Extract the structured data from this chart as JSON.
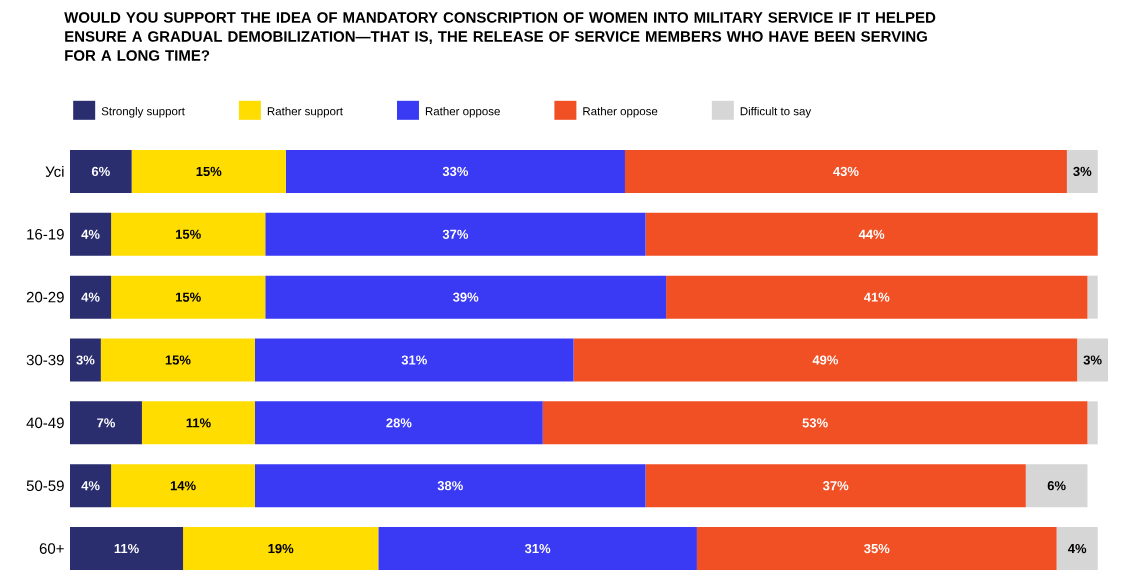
{
  "chart_data": {
    "type": "bar",
    "orientation": "horizontal",
    "stacked": true,
    "title": "WOULD YOU SUPPORT THE IDEA OF MANDATORY CONSCRIPTION OF WOMEN INTO MILITARY SERVICE IF IT HELPED ENSURE A GRADUAL DEMOBILIZATION—THAT IS, THE RELEASE OF SERVICE MEMBERS WHO HAVE BEEN SERVING FOR A LONG TIME?",
    "categories": [
      "Усі",
      "16-19",
      "20-29",
      "30-39",
      "40-49",
      "50-59",
      "60+"
    ],
    "xlim": [
      0,
      101
    ],
    "legend": "top left",
    "tick_labels": "y",
    "series": [
      {
        "name": "Strongly support",
        "color": "#2a2d6e",
        "values": [
          6,
          4,
          4,
          3,
          7,
          4,
          11
        ],
        "value_labels": [
          "6%",
          "4%",
          "4%",
          "3%",
          "7%",
          "4%",
          "11%"
        ]
      },
      {
        "name": "Rather support",
        "color": "#ffdd00",
        "values": [
          15,
          15,
          15,
          15,
          11,
          14,
          19
        ],
        "value_labels": [
          "15%",
          "15%",
          "15%",
          "15%",
          "11%",
          "14%",
          "19%"
        ]
      },
      {
        "name": "Rather oppose",
        "color": "#3a3af5",
        "values": [
          33,
          37,
          39,
          31,
          28,
          38,
          31
        ],
        "value_labels": [
          "33%",
          "37%",
          "39%",
          "31%",
          "28%",
          "38%",
          "31%"
        ]
      },
      {
        "name": "Rather oppose",
        "color": "#f15025",
        "values": [
          43,
          44,
          41,
          49,
          53,
          37,
          35
        ],
        "value_labels": [
          "43%",
          "44%",
          "41%",
          "49%",
          "53%",
          "37%",
          "35%"
        ]
      },
      {
        "name": "Difficult to say",
        "color": "#d6d6d6",
        "values": [
          3,
          0,
          1,
          3,
          1,
          6,
          4
        ],
        "value_labels": [
          "3%",
          null,
          null,
          "3%",
          null,
          "6%",
          "4%"
        ]
      }
    ]
  }
}
